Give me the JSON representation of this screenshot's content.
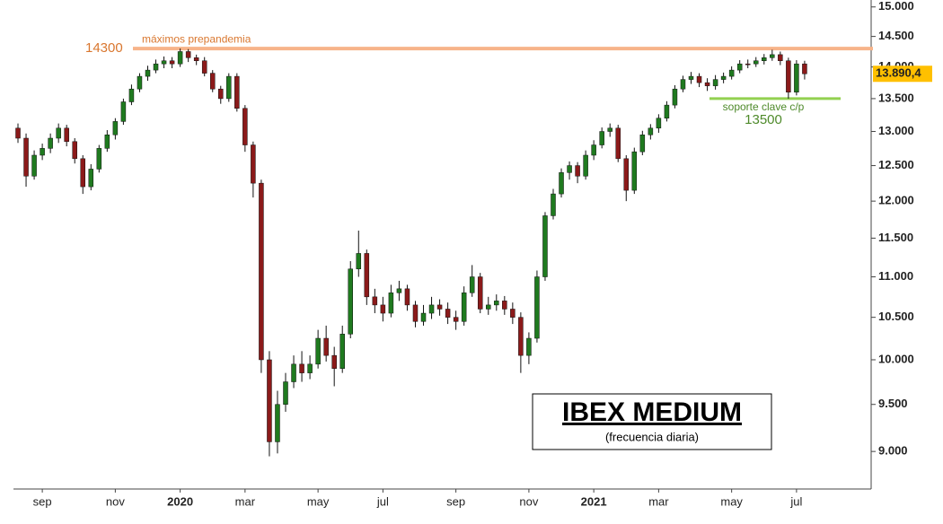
{
  "chart_data": {
    "type": "candlestick",
    "title": "IBEX MEDIUM",
    "subtitle": "(frecuencia diaria)",
    "log_scale": true,
    "ylim": [
      8620,
      15120
    ],
    "yticks": [
      {
        "value": 15000,
        "label": "15.000"
      },
      {
        "value": 14500,
        "label": "14.500"
      },
      {
        "value": 14000,
        "label": "14.000"
      },
      {
        "value": 13500,
        "label": "13.500"
      },
      {
        "value": 13000,
        "label": "13.000"
      },
      {
        "value": 12500,
        "label": "12.500"
      },
      {
        "value": 12000,
        "label": "12.000"
      },
      {
        "value": 11500,
        "label": "11.500"
      },
      {
        "value": 11000,
        "label": "11.000"
      },
      {
        "value": 10500,
        "label": "10.500"
      },
      {
        "value": 10000,
        "label": "10.000"
      },
      {
        "value": 9500,
        "label": "9.500"
      },
      {
        "value": 9000,
        "label": "9.000"
      }
    ],
    "up_color": "#1f7a1f",
    "down_color": "#8b1a1a",
    "last_price": {
      "value": 13890.4,
      "label": "13.890,4",
      "color": "#ffc000"
    },
    "reference_lines": [
      {
        "value": 14300,
        "text": "máximos prepandemia",
        "color": "#f7b48a",
        "text_color": "#d9772f"
      },
      {
        "value": 13500,
        "text": "soporte clave c/p",
        "color": "#92d050",
        "text_color": "#4e8a2a"
      }
    ],
    "categories": [
      null,
      null,
      null,
      "sep",
      null,
      null,
      null,
      null,
      null,
      null,
      null,
      null,
      "nov",
      null,
      null,
      null,
      null,
      null,
      null,
      null,
      "2020",
      null,
      null,
      null,
      null,
      null,
      null,
      null,
      "mar",
      null,
      null,
      null,
      null,
      null,
      null,
      null,
      null,
      "may",
      null,
      null,
      null,
      null,
      null,
      null,
      null,
      "jul",
      null,
      null,
      null,
      null,
      null,
      null,
      null,
      null,
      "sep",
      null,
      null,
      null,
      null,
      null,
      null,
      null,
      null,
      "nov",
      null,
      null,
      null,
      null,
      null,
      null,
      null,
      "2021",
      null,
      null,
      null,
      null,
      null,
      null,
      null,
      "mar",
      null,
      null,
      null,
      null,
      null,
      null,
      null,
      null,
      "may",
      null,
      null,
      null,
      null,
      null,
      null,
      null,
      "jul",
      null
    ],
    "open": [
      13050,
      12900,
      12350,
      12650,
      12750,
      12900,
      13050,
      12850,
      12600,
      12200,
      12450,
      12750,
      12950,
      13150,
      13450,
      13650,
      13850,
      13950,
      14050,
      14100,
      14050,
      14250,
      14150,
      14100,
      13900,
      13650,
      13500,
      13850,
      13350,
      12800,
      12250,
      10000,
      9100,
      9500,
      9750,
      9950,
      9850,
      9950,
      10250,
      10050,
      9900,
      10300,
      11100,
      11300,
      10750,
      10650,
      10550,
      10800,
      10850,
      10650,
      10450,
      10550,
      10650,
      10600,
      10500,
      10450,
      10800,
      11000,
      10600,
      10650,
      10700,
      10600,
      10500,
      10050,
      10250,
      11000,
      11800,
      12100,
      12400,
      12500,
      12350,
      12650,
      12800,
      13000,
      13050,
      12600,
      12150,
      12700,
      12950,
      13050,
      13200,
      13400,
      13650,
      13800,
      13850,
      13750,
      13700,
      13800,
      13850,
      13950,
      14050,
      14050,
      14100,
      14150,
      14200,
      14100,
      13600,
      14050
    ],
    "high": [
      13120,
      12970,
      12720,
      12820,
      12970,
      13120,
      13100,
      12900,
      12650,
      12520,
      12800,
      13020,
      13200,
      13500,
      13720,
      13900,
      14020,
      14120,
      14170,
      14160,
      14300,
      14290,
      14200,
      14160,
      13950,
      13700,
      13900,
      13900,
      13400,
      12850,
      12300,
      10100,
      9650,
      9850,
      10050,
      10100,
      10050,
      10350,
      10400,
      10150,
      10400,
      11200,
      11600,
      11350,
      10850,
      10750,
      10900,
      10950,
      10900,
      10700,
      10650,
      10750,
      10720,
      10680,
      10580,
      10880,
      11150,
      11050,
      10750,
      10780,
      10760,
      10680,
      10560,
      10320,
      11080,
      11850,
      12170,
      12460,
      12560,
      12550,
      12720,
      12870,
      13060,
      13120,
      13100,
      12650,
      12760,
      13010,
      13110,
      13260,
      13460,
      13710,
      13860,
      13920,
      13900,
      13820,
      13870,
      13910,
      14010,
      14110,
      14120,
      14160,
      14210,
      14280,
      14250,
      14150,
      14110,
      14100
    ],
    "low": [
      12830,
      12200,
      12300,
      12580,
      12680,
      12830,
      12780,
      12530,
      12100,
      12150,
      12400,
      12700,
      12880,
      13100,
      13400,
      13600,
      13780,
      13900,
      13980,
      13980,
      14000,
      14080,
      14030,
      13850,
      13600,
      13420,
      13450,
      13300,
      12700,
      12050,
      9850,
      8950,
      8980,
      9420,
      9680,
      9750,
      9780,
      9900,
      9980,
      9700,
      9850,
      10250,
      11000,
      10650,
      10550,
      10450,
      10500,
      10700,
      10580,
      10380,
      10400,
      10480,
      10520,
      10420,
      10350,
      10400,
      10750,
      10550,
      10530,
      10580,
      10530,
      10420,
      9850,
      9950,
      10200,
      10950,
      11750,
      12050,
      12300,
      12250,
      12300,
      12580,
      12750,
      12920,
      12550,
      12000,
      12100,
      12650,
      12880,
      12980,
      13150,
      13350,
      13600,
      13730,
      13680,
      13620,
      13640,
      13740,
      13800,
      13900,
      13980,
      14000,
      14040,
      14100,
      14030,
      13500,
      13550,
      13800
    ],
    "close": [
      12900,
      12350,
      12650,
      12750,
      12900,
      13050,
      12850,
      12600,
      12200,
      12450,
      12750,
      12950,
      13150,
      13450,
      13650,
      13850,
      13950,
      14050,
      14100,
      14050,
      14250,
      14150,
      14100,
      13900,
      13650,
      13500,
      13850,
      13350,
      12800,
      12250,
      10000,
      9100,
      9500,
      9750,
      9950,
      9850,
      9950,
      10250,
      10050,
      9900,
      10300,
      11100,
      11300,
      10750,
      10650,
      10550,
      10800,
      10850,
      10650,
      10450,
      10550,
      10650,
      10600,
      10500,
      10450,
      10800,
      11000,
      10600,
      10650,
      10700,
      10600,
      10500,
      10050,
      10250,
      11000,
      11800,
      12100,
      12400,
      12500,
      12350,
      12650,
      12800,
      13000,
      13050,
      12600,
      12150,
      12700,
      12950,
      13050,
      13200,
      13400,
      13650,
      13800,
      13850,
      13750,
      13700,
      13800,
      13850,
      13950,
      14050,
      14050,
      14100,
      14150,
      14200,
      14100,
      13600,
      14050,
      13890.4
    ]
  }
}
